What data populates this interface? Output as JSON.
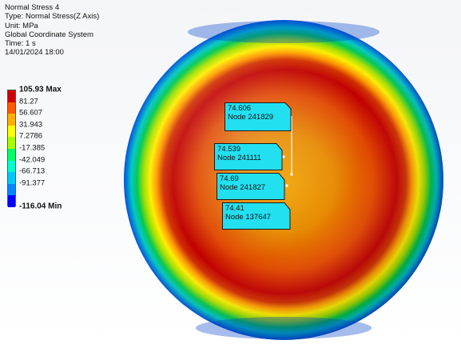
{
  "info": {
    "title": "Normal Stress 4",
    "type": "Type: Normal Stress(Z Axis)",
    "unit": "Unit: MPa",
    "coords": "Global Coordinate System",
    "time": "Time: 1 s",
    "date": "14/01/2024 18:00"
  },
  "legend": {
    "max_label": "105.93 Max",
    "values": [
      "81.27",
      "56.607",
      "31.943",
      "7.2786",
      "-17.385",
      "-42.049",
      "-66.713",
      "-91.377"
    ],
    "min_label": "-116.04 Min",
    "colors": [
      "#cc0000",
      "#ff5a00",
      "#ffb000",
      "#ffff00",
      "#a8ff00",
      "#00ff66",
      "#00ffcc",
      "#00c8ff",
      "#0088ff",
      "#0000ff"
    ]
  },
  "probes": [
    {
      "value": "74.606",
      "node": "Node 241829"
    },
    {
      "value": "74.539",
      "node": "Node 241111"
    },
    {
      "value": "74.69",
      "node": "Node 241827"
    },
    {
      "value": "74.41",
      "node": "Node 137647"
    }
  ],
  "colors": {
    "probe_fill": "#22e0f0",
    "probe_border": "#1a1a1a",
    "background": "#f4f5f8"
  }
}
